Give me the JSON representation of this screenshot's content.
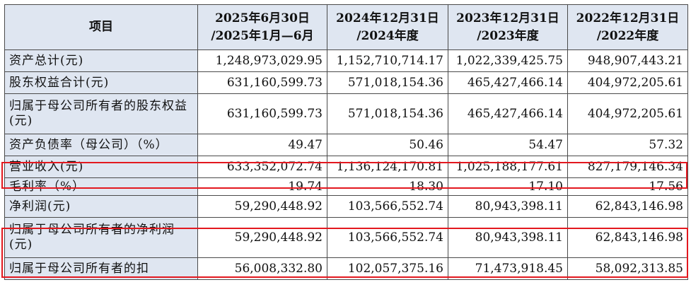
{
  "header": {
    "item": "项目",
    "cols": [
      {
        "line1": "2025年6月30日",
        "line2": "/2025年1月—6月"
      },
      {
        "line1": "2024年12月31日",
        "line2": "/2024年度"
      },
      {
        "line1": "2023年12月31日",
        "line2": "/2023年度"
      },
      {
        "line1": "2022年12月31日",
        "line2": "/2022年度"
      }
    ]
  },
  "rows": [
    {
      "label": "资产总计(元)",
      "values": [
        "1,248,973,029.95",
        "1,152,710,714.17",
        "1,022,339,425.75",
        "948,907,443.21"
      ]
    },
    {
      "label": "股东权益合计(元)",
      "values": [
        "631,160,599.73",
        "571,018,154.36",
        "465,427,466.14",
        "404,972,205.61"
      ]
    },
    {
      "label": "归属于母公司所有者的股东权益(元)",
      "values": [
        "631,160,599.73",
        "571,018,154.36",
        "465,427,466.14",
        "404,972,205.61"
      ]
    },
    {
      "label": "资产负债率（母公司）（%）",
      "values": [
        "49.47",
        "50.46",
        "54.47",
        "57.32"
      ]
    },
    {
      "label": "营业收入(元)",
      "values": [
        "633,352,072.74",
        "1,136,124,170.81",
        "1,025,188,177.61",
        "827,179,146.34"
      ]
    },
    {
      "label": "毛利率（%）",
      "values": [
        "19.74",
        "18.30",
        "17.10",
        "17.56"
      ]
    },
    {
      "label": "净利润(元)",
      "values": [
        "59,290,448.92",
        "103,566,552.74",
        "80,943,398.11",
        "62,843,146.98"
      ]
    },
    {
      "label": "归属于母公司所有者的净利润(元)",
      "values": [
        "59,290,448.92",
        "103,566,552.74",
        "80,943,398.11",
        "62,843,146.98"
      ]
    },
    {
      "label": "归属于母公司所有者的扣",
      "values": [
        "56,008,332.80",
        "102,057,375.16",
        "71,473,918.45",
        "58,092,313.85"
      ]
    }
  ]
}
